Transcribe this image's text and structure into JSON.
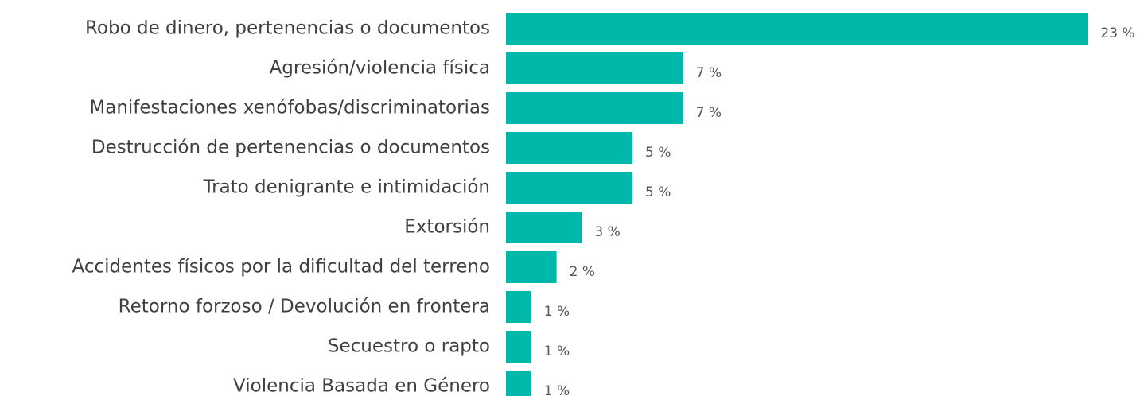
{
  "chart_data": {
    "type": "bar",
    "orientation": "horizontal",
    "categories": [
      "Robo de dinero, pertenencias o documentos",
      "Agresión/violencia física",
      "Manifestaciones xenófobas/discriminatorias",
      "Destrucción de pertenencias o documentos",
      "Trato denigrante e intimidación",
      "Extorsión",
      "Accidentes físicos por la dificultad del terreno",
      "Retorno forzoso / Devolución en frontera",
      "Secuestro o rapto",
      "Violencia Basada en Género"
    ],
    "values": [
      23,
      7,
      7,
      5,
      5,
      3,
      2,
      1,
      1,
      1
    ],
    "value_labels": [
      "23 %",
      "7 %",
      "7 %",
      "5 %",
      "5 %",
      "3 %",
      "2 %",
      "1 %",
      "1 %",
      "1 %"
    ],
    "color": "#00b8a9"
  }
}
